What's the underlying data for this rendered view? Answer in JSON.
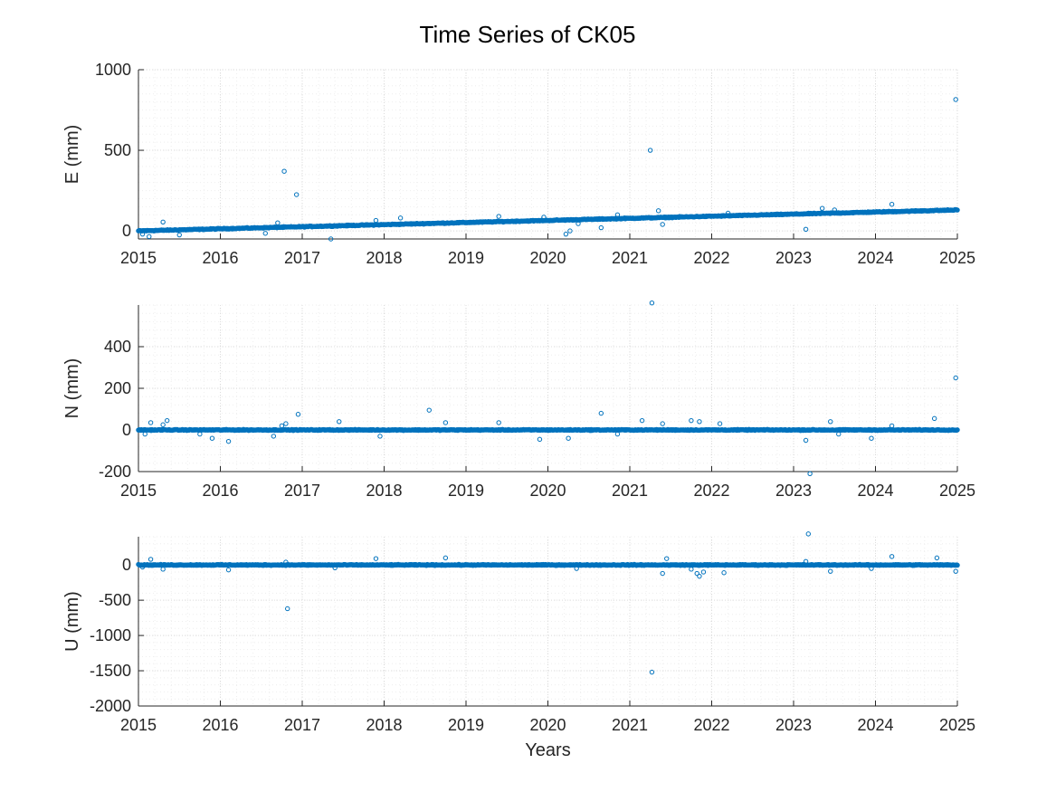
{
  "figure": {
    "title": "Time Series of CK05",
    "colors": {
      "marker": "#0072BD",
      "axis": "#262626",
      "grid": "#dddddd",
      "background": "#ffffff"
    }
  },
  "chart_data": [
    {
      "type": "scatter",
      "id": "E",
      "ylabel": "E (mm)",
      "xlabel": "",
      "xlim": [
        2015,
        2025
      ],
      "ylim": [
        -50,
        1000
      ],
      "xticks": [
        2015,
        2016,
        2017,
        2018,
        2019,
        2020,
        2021,
        2022,
        2023,
        2024,
        2025
      ],
      "yticks": [
        0,
        500,
        1000
      ],
      "grid": true,
      "trend": {
        "x_start": 2015,
        "x_end": 2025,
        "y_start": 0,
        "y_end": 130
      },
      "outliers": [
        {
          "x": 2015.05,
          "y": -20
        },
        {
          "x": 2015.13,
          "y": -35
        },
        {
          "x": 2015.3,
          "y": 55
        },
        {
          "x": 2015.5,
          "y": -25
        },
        {
          "x": 2016.55,
          "y": -15
        },
        {
          "x": 2016.7,
          "y": 50
        },
        {
          "x": 2016.78,
          "y": 370
        },
        {
          "x": 2016.93,
          "y": 225
        },
        {
          "x": 2017.35,
          "y": -50
        },
        {
          "x": 2017.9,
          "y": 65
        },
        {
          "x": 2018.2,
          "y": 80
        },
        {
          "x": 2019.4,
          "y": 90
        },
        {
          "x": 2019.95,
          "y": 85
        },
        {
          "x": 2020.22,
          "y": -20
        },
        {
          "x": 2020.27,
          "y": 0
        },
        {
          "x": 2020.37,
          "y": 45
        },
        {
          "x": 2020.65,
          "y": 20
        },
        {
          "x": 2020.85,
          "y": 100
        },
        {
          "x": 2021.25,
          "y": 500
        },
        {
          "x": 2021.35,
          "y": 125
        },
        {
          "x": 2021.4,
          "y": 40
        },
        {
          "x": 2022.2,
          "y": 110
        },
        {
          "x": 2023.15,
          "y": 10
        },
        {
          "x": 2023.35,
          "y": 140
        },
        {
          "x": 2023.5,
          "y": 130
        },
        {
          "x": 2024.2,
          "y": 165
        },
        {
          "x": 2024.98,
          "y": 815
        }
      ]
    },
    {
      "type": "scatter",
      "id": "N",
      "ylabel": "N (mm)",
      "xlabel": "",
      "xlim": [
        2015,
        2025
      ],
      "ylim": [
        -200,
        600
      ],
      "xticks": [
        2015,
        2016,
        2017,
        2018,
        2019,
        2020,
        2021,
        2022,
        2023,
        2024,
        2025
      ],
      "yticks": [
        -200,
        0,
        200,
        400
      ],
      "grid": true,
      "trend": {
        "x_start": 2015,
        "x_end": 2025,
        "y_start": 0,
        "y_end": 0
      },
      "outliers": [
        {
          "x": 2015.08,
          "y": -20
        },
        {
          "x": 2015.15,
          "y": 35
        },
        {
          "x": 2015.3,
          "y": 25
        },
        {
          "x": 2015.35,
          "y": 45
        },
        {
          "x": 2015.75,
          "y": -20
        },
        {
          "x": 2015.9,
          "y": -40
        },
        {
          "x": 2016.1,
          "y": -55
        },
        {
          "x": 2016.65,
          "y": -30
        },
        {
          "x": 2016.75,
          "y": 20
        },
        {
          "x": 2016.8,
          "y": 30
        },
        {
          "x": 2016.95,
          "y": 75
        },
        {
          "x": 2017.45,
          "y": 40
        },
        {
          "x": 2017.95,
          "y": -30
        },
        {
          "x": 2018.55,
          "y": 95
        },
        {
          "x": 2018.75,
          "y": 35
        },
        {
          "x": 2019.4,
          "y": 35
        },
        {
          "x": 2019.9,
          "y": -45
        },
        {
          "x": 2020.25,
          "y": -40
        },
        {
          "x": 2020.65,
          "y": 80
        },
        {
          "x": 2020.85,
          "y": -20
        },
        {
          "x": 2021.15,
          "y": 45
        },
        {
          "x": 2021.27,
          "y": 610
        },
        {
          "x": 2021.4,
          "y": 30
        },
        {
          "x": 2021.75,
          "y": 45
        },
        {
          "x": 2021.85,
          "y": 40
        },
        {
          "x": 2022.1,
          "y": 30
        },
        {
          "x": 2023.15,
          "y": -50
        },
        {
          "x": 2023.2,
          "y": -210
        },
        {
          "x": 2023.45,
          "y": 40
        },
        {
          "x": 2023.55,
          "y": -20
        },
        {
          "x": 2023.95,
          "y": -40
        },
        {
          "x": 2024.2,
          "y": 20
        },
        {
          "x": 2024.72,
          "y": 55
        },
        {
          "x": 2024.98,
          "y": 250
        }
      ]
    },
    {
      "type": "scatter",
      "id": "U",
      "ylabel": "U (mm)",
      "xlabel": "Years",
      "xlim": [
        2015,
        2025
      ],
      "ylim": [
        -2000,
        400
      ],
      "xticks": [
        2015,
        2016,
        2017,
        2018,
        2019,
        2020,
        2021,
        2022,
        2023,
        2024,
        2025
      ],
      "yticks": [
        -2000,
        -1500,
        -1000,
        -500,
        0
      ],
      "grid": true,
      "trend": {
        "x_start": 2015,
        "x_end": 2025,
        "y_start": 0,
        "y_end": 0
      },
      "outliers": [
        {
          "x": 2015.05,
          "y": -30
        },
        {
          "x": 2015.15,
          "y": 80
        },
        {
          "x": 2015.3,
          "y": -60
        },
        {
          "x": 2016.1,
          "y": -70
        },
        {
          "x": 2016.8,
          "y": 40
        },
        {
          "x": 2016.82,
          "y": -620
        },
        {
          "x": 2017.4,
          "y": -40
        },
        {
          "x": 2017.9,
          "y": 90
        },
        {
          "x": 2018.75,
          "y": 100
        },
        {
          "x": 2020.35,
          "y": -50
        },
        {
          "x": 2021.27,
          "y": -1520
        },
        {
          "x": 2021.4,
          "y": -120
        },
        {
          "x": 2021.45,
          "y": 90
        },
        {
          "x": 2021.75,
          "y": -60
        },
        {
          "x": 2021.82,
          "y": -120
        },
        {
          "x": 2021.85,
          "y": -160
        },
        {
          "x": 2021.9,
          "y": -100
        },
        {
          "x": 2022.15,
          "y": -110
        },
        {
          "x": 2023.15,
          "y": 50
        },
        {
          "x": 2023.18,
          "y": 440
        },
        {
          "x": 2023.45,
          "y": -90
        },
        {
          "x": 2023.95,
          "y": -50
        },
        {
          "x": 2024.2,
          "y": 120
        },
        {
          "x": 2024.75,
          "y": 100
        },
        {
          "x": 2024.98,
          "y": -90
        }
      ]
    }
  ]
}
